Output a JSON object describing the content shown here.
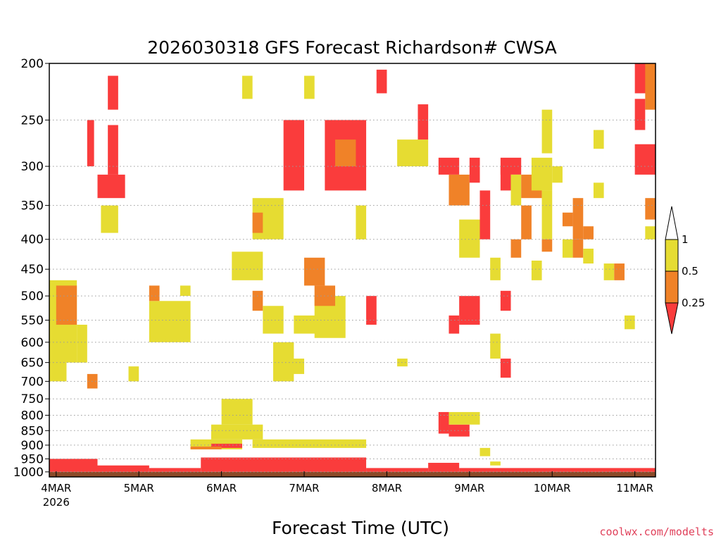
{
  "chart_data": {
    "type": "heatmap",
    "title": "2026030318 GFS Forecast Richardson# CWSA",
    "xlabel": "Forecast Time (UTC)",
    "ylabel": "",
    "credit": "coolwx.com/modelts",
    "y_axis": {
      "scale": "log-pressure",
      "reversed": true,
      "range": [
        1020,
        200
      ],
      "ticks": [
        200,
        250,
        300,
        350,
        400,
        450,
        500,
        550,
        600,
        650,
        700,
        750,
        800,
        850,
        900,
        950,
        1000
      ]
    },
    "x_axis": {
      "range": [
        "2026-03-03T22:00",
        "2026-03-11T06:00"
      ],
      "ticks": [
        {
          "t": "2026-03-04T00:00",
          "label": "4MAR",
          "sublabel": "2026"
        },
        {
          "t": "2026-03-05T00:00",
          "label": "5MAR"
        },
        {
          "t": "2026-03-06T00:00",
          "label": "6MAR"
        },
        {
          "t": "2026-03-07T00:00",
          "label": "7MAR"
        },
        {
          "t": "2026-03-08T00:00",
          "label": "8MAR"
        },
        {
          "t": "2026-03-09T00:00",
          "label": "9MAR"
        },
        {
          "t": "2026-03-10T00:00",
          "label": "10MAR"
        },
        {
          "t": "2026-03-11T00:00",
          "label": "11MAR"
        }
      ]
    },
    "grid": {
      "horizontal_dotted": true
    },
    "legend": {
      "placement": "right",
      "levels": [
        {
          "label": "1",
          "color": "#ffffff"
        },
        {
          "label": "0.5",
          "color": "#e6dc32"
        },
        {
          "label": "0.25",
          "color": "#f08228"
        },
        {
          "label": "",
          "color": "#fa3c3c"
        }
      ]
    },
    "colors": {
      "lt_0_25": "#fa3c3c",
      "0_25_0_5": "#f08228",
      "0_5_1": "#e6dc32",
      "ground": "#8b4a28"
    },
    "regions": [
      {
        "t0": "2026-03-03T22:00",
        "t1": "2026-03-11T06:00",
        "p0": 1000,
        "p1": 1020,
        "cls": "ground"
      },
      {
        "t0": "2026-03-03T22:00",
        "t1": "2026-03-04T12:00",
        "p0": 950,
        "p1": 1000,
        "cls": "lt_0_25"
      },
      {
        "t0": "2026-03-04T12:00",
        "t1": "2026-03-05T03:00",
        "p0": 975,
        "p1": 1000,
        "cls": "lt_0_25"
      },
      {
        "t0": "2026-03-05T03:00",
        "t1": "2026-03-05T18:00",
        "p0": 985,
        "p1": 1000,
        "cls": "lt_0_25"
      },
      {
        "t0": "2026-03-05T18:00",
        "t1": "2026-03-07T18:00",
        "p0": 945,
        "p1": 1000,
        "cls": "lt_0_25"
      },
      {
        "t0": "2026-03-07T18:00",
        "t1": "2026-03-08T12:00",
        "p0": 985,
        "p1": 1000,
        "cls": "lt_0_25"
      },
      {
        "t0": "2026-03-08T12:00",
        "t1": "2026-03-08T21:00",
        "p0": 965,
        "p1": 1000,
        "cls": "lt_0_25"
      },
      {
        "t0": "2026-03-08T21:00",
        "t1": "2026-03-11T06:00",
        "p0": 985,
        "p1": 1000,
        "cls": "lt_0_25"
      },
      {
        "t0": "2026-03-05T15:00",
        "t1": "2026-03-06T06:00",
        "p0": 880,
        "p1": 915,
        "cls": "0_5_1"
      },
      {
        "t0": "2026-03-05T21:00",
        "t1": "2026-03-06T12:00",
        "p0": 830,
        "p1": 880,
        "cls": "0_5_1"
      },
      {
        "t0": "2026-03-06T00:00",
        "t1": "2026-03-06T09:00",
        "p0": 750,
        "p1": 830,
        "cls": "0_5_1"
      },
      {
        "t0": "2026-03-06T09:00",
        "t1": "2026-03-07T18:00",
        "p0": 880,
        "p1": 910,
        "cls": "0_5_1"
      },
      {
        "t0": "2026-03-05T21:00",
        "t1": "2026-03-06T06:00",
        "p0": 895,
        "p1": 910,
        "cls": "lt_0_25"
      },
      {
        "t0": "2026-03-05T15:00",
        "t1": "2026-03-06T00:00",
        "p0": 905,
        "p1": 915,
        "cls": "0_25_0_5"
      },
      {
        "t0": "2026-03-03T22:00",
        "t1": "2026-03-04T06:00",
        "p0": 470,
        "p1": 650,
        "cls": "0_5_1"
      },
      {
        "t0": "2026-03-04T00:00",
        "t1": "2026-03-04T06:00",
        "p0": 480,
        "p1": 560,
        "cls": "0_25_0_5"
      },
      {
        "t0": "2026-03-04T06:00",
        "t1": "2026-03-04T09:00",
        "p0": 560,
        "p1": 650,
        "cls": "0_5_1"
      },
      {
        "t0": "2026-03-04T12:00",
        "t1": "2026-03-04T20:00",
        "p0": 310,
        "p1": 340,
        "cls": "lt_0_25"
      },
      {
        "t0": "2026-03-04T13:00",
        "t1": "2026-03-04T18:00",
        "p0": 350,
        "p1": 390,
        "cls": "0_5_1"
      },
      {
        "t0": "2026-03-04T09:00",
        "t1": "2026-03-04T11:00",
        "p0": 250,
        "p1": 300,
        "cls": "lt_0_25"
      },
      {
        "t0": "2026-03-04T15:00",
        "t1": "2026-03-04T18:00",
        "p0": 255,
        "p1": 310,
        "cls": "lt_0_25"
      },
      {
        "t0": "2026-03-05T03:00",
        "t1": "2026-03-05T15:00",
        "p0": 510,
        "p1": 600,
        "cls": "0_5_1"
      },
      {
        "t0": "2026-03-05T03:00",
        "t1": "2026-03-05T06:00",
        "p0": 480,
        "p1": 510,
        "cls": "0_25_0_5"
      },
      {
        "t0": "2026-03-05T12:00",
        "t1": "2026-03-05T15:00",
        "p0": 480,
        "p1": 500,
        "cls": "0_5_1"
      },
      {
        "t0": "2026-03-06T03:00",
        "t1": "2026-03-06T12:00",
        "p0": 420,
        "p1": 470,
        "cls": "0_5_1"
      },
      {
        "t0": "2026-03-06T09:00",
        "t1": "2026-03-06T18:00",
        "p0": 340,
        "p1": 400,
        "cls": "0_5_1"
      },
      {
        "t0": "2026-03-06T09:00",
        "t1": "2026-03-06T12:00",
        "p0": 360,
        "p1": 390,
        "cls": "0_25_0_5"
      },
      {
        "t0": "2026-03-06T09:00",
        "t1": "2026-03-06T12:00",
        "p0": 490,
        "p1": 530,
        "cls": "0_25_0_5"
      },
      {
        "t0": "2026-03-06T12:00",
        "t1": "2026-03-06T18:00",
        "p0": 520,
        "p1": 580,
        "cls": "0_5_1"
      },
      {
        "t0": "2026-03-06T18:00",
        "t1": "2026-03-07T00:00",
        "p0": 250,
        "p1": 330,
        "cls": "lt_0_25"
      },
      {
        "t0": "2026-03-06T15:00",
        "t1": "2026-03-06T21:00",
        "p0": 600,
        "p1": 700,
        "cls": "0_5_1"
      },
      {
        "t0": "2026-03-06T21:00",
        "t1": "2026-03-07T06:00",
        "p0": 540,
        "p1": 580,
        "cls": "0_5_1"
      },
      {
        "t0": "2026-03-07T00:00",
        "t1": "2026-03-07T06:00",
        "p0": 430,
        "p1": 480,
        "cls": "0_25_0_5"
      },
      {
        "t0": "2026-03-07T03:00",
        "t1": "2026-03-07T12:00",
        "p0": 500,
        "p1": 590,
        "cls": "0_5_1"
      },
      {
        "t0": "2026-03-07T03:00",
        "t1": "2026-03-07T09:00",
        "p0": 480,
        "p1": 520,
        "cls": "0_25_0_5"
      },
      {
        "t0": "2026-03-07T06:00",
        "t1": "2026-03-07T18:00",
        "p0": 250,
        "p1": 330,
        "cls": "lt_0_25"
      },
      {
        "t0": "2026-03-07T09:00",
        "t1": "2026-03-07T15:00",
        "p0": 270,
        "p1": 300,
        "cls": "0_25_0_5"
      },
      {
        "t0": "2026-03-07T15:00",
        "t1": "2026-03-07T18:00",
        "p0": 350,
        "p1": 400,
        "cls": "0_5_1"
      },
      {
        "t0": "2026-03-07T18:00",
        "t1": "2026-03-07T21:00",
        "p0": 500,
        "p1": 560,
        "cls": "lt_0_25"
      },
      {
        "t0": "2026-03-06T06:00",
        "t1": "2026-03-06T09:00",
        "p0": 210,
        "p1": 230,
        "cls": "0_5_1"
      },
      {
        "t0": "2026-03-07T00:00",
        "t1": "2026-03-07T03:00",
        "p0": 210,
        "p1": 230,
        "cls": "0_5_1"
      },
      {
        "t0": "2026-03-07T21:00",
        "t1": "2026-03-08T00:00",
        "p0": 205,
        "p1": 225,
        "cls": "lt_0_25"
      },
      {
        "t0": "2026-03-08T03:00",
        "t1": "2026-03-08T12:00",
        "p0": 270,
        "p1": 300,
        "cls": "0_5_1"
      },
      {
        "t0": "2026-03-08T09:00",
        "t1": "2026-03-08T12:00",
        "p0": 235,
        "p1": 270,
        "cls": "lt_0_25"
      },
      {
        "t0": "2026-03-08T15:00",
        "t1": "2026-03-08T21:00",
        "p0": 290,
        "p1": 310,
        "cls": "lt_0_25"
      },
      {
        "t0": "2026-03-08T18:00",
        "t1": "2026-03-09T00:00",
        "p0": 310,
        "p1": 350,
        "cls": "0_25_0_5"
      },
      {
        "t0": "2026-03-08T21:00",
        "t1": "2026-03-09T03:00",
        "p0": 370,
        "p1": 430,
        "cls": "0_5_1"
      },
      {
        "t0": "2026-03-08T21:00",
        "t1": "2026-03-09T03:00",
        "p0": 500,
        "p1": 560,
        "cls": "lt_0_25"
      },
      {
        "t0": "2026-03-08T18:00",
        "t1": "2026-03-08T21:00",
        "p0": 540,
        "p1": 580,
        "cls": "lt_0_25"
      },
      {
        "t0": "2026-03-09T00:00",
        "t1": "2026-03-09T03:00",
        "p0": 290,
        "p1": 320,
        "cls": "lt_0_25"
      },
      {
        "t0": "2026-03-09T03:00",
        "t1": "2026-03-09T06:00",
        "p0": 330,
        "p1": 400,
        "cls": "lt_0_25"
      },
      {
        "t0": "2026-03-09T06:00",
        "t1": "2026-03-09T09:00",
        "p0": 430,
        "p1": 470,
        "cls": "0_5_1"
      },
      {
        "t0": "2026-03-09T06:00",
        "t1": "2026-03-09T09:00",
        "p0": 580,
        "p1": 640,
        "cls": "0_5_1"
      },
      {
        "t0": "2026-03-09T09:00",
        "t1": "2026-03-09T12:00",
        "p0": 300,
        "p1": 330,
        "cls": "lt_0_25"
      },
      {
        "t0": "2026-03-09T09:00",
        "t1": "2026-03-09T15:00",
        "p0": 290,
        "p1": 310,
        "cls": "lt_0_25"
      },
      {
        "t0": "2026-03-09T12:00",
        "t1": "2026-03-09T15:00",
        "p0": 310,
        "p1": 350,
        "cls": "0_5_1"
      },
      {
        "t0": "2026-03-09T15:00",
        "t1": "2026-03-09T21:00",
        "p0": 310,
        "p1": 340,
        "cls": "0_25_0_5"
      },
      {
        "t0": "2026-03-09T15:00",
        "t1": "2026-03-09T18:00",
        "p0": 350,
        "p1": 400,
        "cls": "0_25_0_5"
      },
      {
        "t0": "2026-03-09T12:00",
        "t1": "2026-03-09T15:00",
        "p0": 400,
        "p1": 430,
        "cls": "0_25_0_5"
      },
      {
        "t0": "2026-03-09T09:00",
        "t1": "2026-03-09T12:00",
        "p0": 640,
        "p1": 690,
        "cls": "lt_0_25"
      },
      {
        "t0": "2026-03-09T09:00",
        "t1": "2026-03-09T12:00",
        "p0": 490,
        "p1": 530,
        "cls": "lt_0_25"
      },
      {
        "t0": "2026-03-09T18:00",
        "t1": "2026-03-10T00:00",
        "p0": 290,
        "p1": 330,
        "cls": "0_5_1"
      },
      {
        "t0": "2026-03-09T21:00",
        "t1": "2026-03-10T00:00",
        "p0": 330,
        "p1": 400,
        "cls": "0_5_1"
      },
      {
        "t0": "2026-03-09T21:00",
        "t1": "2026-03-10T00:00",
        "p0": 400,
        "p1": 420,
        "cls": "0_25_0_5"
      },
      {
        "t0": "2026-03-09T18:00",
        "t1": "2026-03-09T21:00",
        "p0": 435,
        "p1": 470,
        "cls": "0_5_1"
      },
      {
        "t0": "2026-03-09T21:00",
        "t1": "2026-03-10T00:00",
        "p0": 240,
        "p1": 285,
        "cls": "0_5_1"
      },
      {
        "t0": "2026-03-10T00:00",
        "t1": "2026-03-10T03:00",
        "p0": 300,
        "p1": 320,
        "cls": "0_5_1"
      },
      {
        "t0": "2026-03-10T03:00",
        "t1": "2026-03-10T06:00",
        "p0": 360,
        "p1": 380,
        "cls": "0_25_0_5"
      },
      {
        "t0": "2026-03-10T03:00",
        "t1": "2026-03-10T06:00",
        "p0": 400,
        "p1": 430,
        "cls": "0_5_1"
      },
      {
        "t0": "2026-03-10T06:00",
        "t1": "2026-03-10T09:00",
        "p0": 340,
        "p1": 400,
        "cls": "0_25_0_5"
      },
      {
        "t0": "2026-03-10T06:00",
        "t1": "2026-03-10T09:00",
        "p0": 400,
        "p1": 430,
        "cls": "0_25_0_5"
      },
      {
        "t0": "2026-03-10T09:00",
        "t1": "2026-03-10T12:00",
        "p0": 380,
        "p1": 400,
        "cls": "0_25_0_5"
      },
      {
        "t0": "2026-03-10T09:00",
        "t1": "2026-03-10T12:00",
        "p0": 415,
        "p1": 440,
        "cls": "0_5_1"
      },
      {
        "t0": "2026-03-10T15:00",
        "t1": "2026-03-10T18:00",
        "p0": 440,
        "p1": 470,
        "cls": "0_5_1"
      },
      {
        "t0": "2026-03-10T18:00",
        "t1": "2026-03-10T21:00",
        "p0": 440,
        "p1": 470,
        "cls": "0_25_0_5"
      },
      {
        "t0": "2026-03-10T12:00",
        "t1": "2026-03-10T15:00",
        "p0": 260,
        "p1": 280,
        "cls": "0_5_1"
      },
      {
        "t0": "2026-03-10T12:00",
        "t1": "2026-03-10T15:00",
        "p0": 320,
        "p1": 340,
        "cls": "0_5_1"
      },
      {
        "t0": "2026-03-11T00:00",
        "t1": "2026-03-11T06:00",
        "p0": 200,
        "p1": 225,
        "cls": "lt_0_25"
      },
      {
        "t0": "2026-03-11T03:00",
        "t1": "2026-03-11T06:00",
        "p0": 200,
        "p1": 240,
        "cls": "0_25_0_5"
      },
      {
        "t0": "2026-03-11T00:00",
        "t1": "2026-03-11T03:00",
        "p0": 230,
        "p1": 260,
        "cls": "lt_0_25"
      },
      {
        "t0": "2026-03-11T00:00",
        "t1": "2026-03-11T06:00",
        "p0": 275,
        "p1": 310,
        "cls": "lt_0_25"
      },
      {
        "t0": "2026-03-11T03:00",
        "t1": "2026-03-11T06:00",
        "p0": 340,
        "p1": 370,
        "cls": "0_25_0_5"
      },
      {
        "t0": "2026-03-11T03:00",
        "t1": "2026-03-11T06:00",
        "p0": 380,
        "p1": 400,
        "cls": "0_5_1"
      },
      {
        "t0": "2026-03-10T21:00",
        "t1": "2026-03-11T00:00",
        "p0": 540,
        "p1": 570,
        "cls": "0_5_1"
      },
      {
        "t0": "2026-03-04T15:00",
        "t1": "2026-03-04T18:00",
        "p0": 210,
        "p1": 240,
        "cls": "lt_0_25"
      },
      {
        "t0": "2026-03-04T21:00",
        "t1": "2026-03-05T00:00",
        "p0": 660,
        "p1": 700,
        "cls": "0_5_1"
      },
      {
        "t0": "2026-03-04T09:00",
        "t1": "2026-03-04T12:00",
        "p0": 680,
        "p1": 720,
        "cls": "0_25_0_5"
      },
      {
        "t0": "2026-03-03T22:00",
        "t1": "2026-03-04T03:00",
        "p0": 640,
        "p1": 700,
        "cls": "0_5_1"
      },
      {
        "t0": "2026-03-06T18:00",
        "t1": "2026-03-07T00:00",
        "p0": 640,
        "p1": 680,
        "cls": "0_5_1"
      },
      {
        "t0": "2026-03-08T03:00",
        "t1": "2026-03-08T06:00",
        "p0": 640,
        "p1": 660,
        "cls": "0_5_1"
      },
      {
        "t0": "2026-03-08T15:00",
        "t1": "2026-03-08T18:00",
        "p0": 790,
        "p1": 860,
        "cls": "lt_0_25"
      },
      {
        "t0": "2026-03-08T18:00",
        "t1": "2026-03-09T00:00",
        "p0": 830,
        "p1": 870,
        "cls": "lt_0_25"
      },
      {
        "t0": "2026-03-08T18:00",
        "t1": "2026-03-09T03:00",
        "p0": 790,
        "p1": 830,
        "cls": "0_5_1"
      },
      {
        "t0": "2026-03-09T03:00",
        "t1": "2026-03-09T06:00",
        "p0": 910,
        "p1": 940,
        "cls": "0_5_1"
      },
      {
        "t0": "2026-03-09T06:00",
        "t1": "2026-03-09T09:00",
        "p0": 960,
        "p1": 975,
        "cls": "0_5_1"
      }
    ]
  }
}
